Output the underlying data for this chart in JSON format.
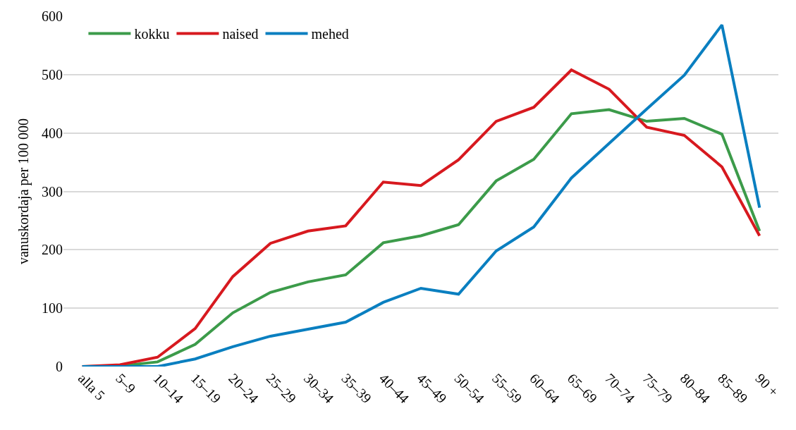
{
  "chart_data": {
    "type": "line",
    "ylabel": "vanuskordaja per 100 000",
    "categories": [
      "alla 5",
      "5–9",
      "10–14",
      "15–19",
      "20–24",
      "25–29",
      "30–34",
      "35–39",
      "40–44",
      "45–49",
      "50–54",
      "55–59",
      "60–64",
      "65–69",
      "70–74",
      "75–79",
      "80–84",
      "85–89",
      "90 +"
    ],
    "series": [
      {
        "name": "kokku",
        "color": "#3c9b4a",
        "values": [
          0,
          1,
          8,
          38,
          92,
          127,
          145,
          157,
          212,
          224,
          243,
          318,
          355,
          433,
          440,
          420,
          425,
          398,
          232
        ]
      },
      {
        "name": "naised",
        "color": "#d7191f",
        "values": [
          0,
          3,
          16,
          65,
          154,
          211,
          232,
          241,
          316,
          310,
          354,
          420,
          444,
          508,
          475,
          410,
          396,
          342,
          224
        ]
      },
      {
        "name": "mehed",
        "color": "#0a7fc0",
        "values": [
          0,
          0,
          0,
          13,
          34,
          52,
          64,
          76,
          110,
          134,
          124,
          198,
          239,
          323,
          382,
          441,
          499,
          585,
          272
        ]
      }
    ],
    "ylim": [
      0,
      600
    ],
    "yticks": [
      0,
      100,
      200,
      300,
      400,
      500,
      600
    ],
    "grid": "y",
    "legend": "top left",
    "marker": "none",
    "line_style": "solid"
  }
}
